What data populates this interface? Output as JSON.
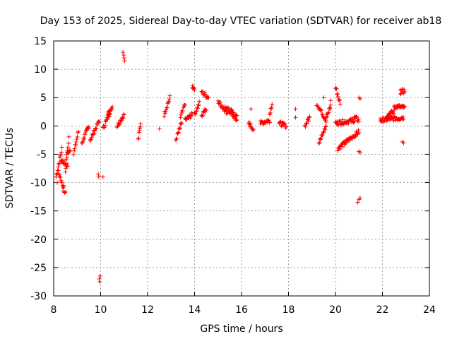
{
  "chart_data": {
    "type": "scatter",
    "title": "Day 153 of 2025, Sidereal Day-to-day VTEC variation (SDTVAR) for receiver ab18",
    "xlabel": "GPS time / hours",
    "ylabel": "SDTVAR / TECUs",
    "xlim": [
      8,
      24
    ],
    "ylim": [
      -30,
      15
    ],
    "xticks": [
      8,
      10,
      12,
      14,
      16,
      18,
      20,
      22,
      24
    ],
    "yticks": [
      15,
      10,
      5,
      0,
      -5,
      -10,
      -15,
      -20,
      -25,
      -30
    ],
    "grid": true,
    "marker": "+",
    "color": "#ff0000",
    "segments": [
      {
        "x0": 8.1,
        "x1": 8.35,
        "y0": -9,
        "y1": -4
      },
      {
        "x0": 8.2,
        "x1": 8.5,
        "y0": -8,
        "y1": -12
      },
      {
        "x0": 8.3,
        "x1": 8.6,
        "y0": -6,
        "y1": -7
      },
      {
        "x0": 8.5,
        "x1": 8.65,
        "y0": -8,
        "y1": -2
      },
      {
        "x0": 8.55,
        "x1": 8.7,
        "y0": -5,
        "y1": -4
      },
      {
        "x0": 8.85,
        "x1": 9.05,
        "y0": -5,
        "y1": -1
      },
      {
        "x0": 9.2,
        "x1": 9.5,
        "y0": -3,
        "y1": 0
      },
      {
        "x0": 9.55,
        "x1": 9.95,
        "y0": -2.5,
        "y1": 1
      },
      {
        "x0": 10.1,
        "x1": 10.4,
        "y0": -0.5,
        "y1": 2.5
      },
      {
        "x0": 10.3,
        "x1": 10.5,
        "y0": 2,
        "y1": 3.5
      },
      {
        "x0": 10.7,
        "x1": 11.0,
        "y0": 0,
        "y1": 2
      },
      {
        "x0": 11.6,
        "x1": 11.7,
        "y0": -2.5,
        "y1": 0.5
      },
      {
        "x0": 12.7,
        "x1": 12.95,
        "y0": 2,
        "y1": 5
      },
      {
        "x0": 13.2,
        "x1": 13.45,
        "y0": -2.5,
        "y1": 0.5
      },
      {
        "x0": 13.4,
        "x1": 13.6,
        "y0": 1.5,
        "y1": 4
      },
      {
        "x0": 13.6,
        "x1": 13.9,
        "y0": 1,
        "y1": 2
      },
      {
        "x0": 13.9,
        "x1": 14.0,
        "y0": 7,
        "y1": 6.7
      },
      {
        "x0": 14.0,
        "x1": 14.2,
        "y0": 2,
        "y1": 4
      },
      {
        "x0": 14.3,
        "x1": 14.6,
        "y0": 6,
        "y1": 5
      },
      {
        "x0": 14.3,
        "x1": 14.5,
        "y0": 2,
        "y1": 3
      },
      {
        "x0": 15.0,
        "x1": 15.4,
        "y0": 4.5,
        "y1": 2
      },
      {
        "x0": 15.3,
        "x1": 15.8,
        "y0": 3.5,
        "y1": 1
      },
      {
        "x0": 15.5,
        "x1": 15.8,
        "y0": 3,
        "y1": 1.5
      },
      {
        "x0": 16.3,
        "x1": 16.5,
        "y0": 0.5,
        "y1": -0.5
      },
      {
        "x0": 16.8,
        "x1": 17.2,
        "y0": 0.5,
        "y1": 1
      },
      {
        "x0": 17.2,
        "x1": 17.3,
        "y0": 2,
        "y1": 4
      },
      {
        "x0": 17.6,
        "x1": 17.9,
        "y0": 0.5,
        "y1": 0
      },
      {
        "x0": 18.7,
        "x1": 18.9,
        "y0": 0,
        "y1": 1.5
      },
      {
        "x0": 19.2,
        "x1": 19.6,
        "y0": 4,
        "y1": 1
      },
      {
        "x0": 19.3,
        "x1": 19.6,
        "y0": -3,
        "y1": 0
      },
      {
        "x0": 19.6,
        "x1": 19.8,
        "y0": 1.5,
        "y1": 3.5
      },
      {
        "x0": 20.0,
        "x1": 20.2,
        "y0": 7,
        "y1": 4
      },
      {
        "x0": 20.1,
        "x1": 21.0,
        "y0": -4,
        "y1": -1
      },
      {
        "x0": 20.0,
        "x1": 20.8,
        "y0": 0.5,
        "y1": 1
      },
      {
        "x0": 20.8,
        "x1": 21.0,
        "y0": 1.5,
        "y1": 1
      },
      {
        "x0": 21.9,
        "x1": 22.9,
        "y0": 1,
        "y1": 1.5
      },
      {
        "x0": 22.2,
        "x1": 22.5,
        "y0": 2,
        "y1": 2.5
      },
      {
        "x0": 22.5,
        "x1": 22.95,
        "y0": 3.5,
        "y1": 3.2
      },
      {
        "x0": 22.75,
        "x1": 22.95,
        "y0": 6,
        "y1": 6.2
      }
    ],
    "points": [
      {
        "x": 10.95,
        "y": 13
      },
      {
        "x": 10.98,
        "y": 12.5
      },
      {
        "x": 11.0,
        "y": 12
      },
      {
        "x": 11.02,
        "y": 11.5
      },
      {
        "x": 9.9,
        "y": -8.5
      },
      {
        "x": 9.92,
        "y": -9
      },
      {
        "x": 9.94,
        "y": -27
      },
      {
        "x": 9.96,
        "y": -27.5
      },
      {
        "x": 9.98,
        "y": -26.5
      },
      {
        "x": 12.5,
        "y": -0.5
      },
      {
        "x": 18.3,
        "y": 3
      },
      {
        "x": 18.3,
        "y": 1.5
      },
      {
        "x": 16.4,
        "y": 3
      },
      {
        "x": 21.0,
        "y": 5
      },
      {
        "x": 21.05,
        "y": 4.8
      },
      {
        "x": 21.0,
        "y": -4.5
      },
      {
        "x": 21.05,
        "y": -4.7
      },
      {
        "x": 20.95,
        "y": -13.5
      },
      {
        "x": 21.0,
        "y": -13
      },
      {
        "x": 21.05,
        "y": -12.7
      },
      {
        "x": 22.85,
        "y": -2.8
      },
      {
        "x": 22.9,
        "y": -3
      },
      {
        "x": 19.8,
        "y": 4.5
      },
      {
        "x": 19.5,
        "y": 5
      },
      {
        "x": 8.15,
        "y": -10
      },
      {
        "x": 8.4,
        "y": -11.5
      },
      {
        "x": 10.1,
        "y": -9
      }
    ]
  }
}
